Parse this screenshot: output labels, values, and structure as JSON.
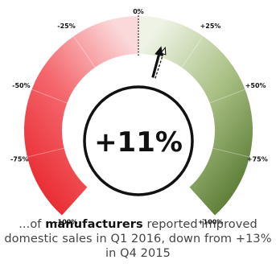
{
  "chart_data": {
    "type": "gauge",
    "value": 11,
    "previous_value": 13,
    "value_label": "+11%",
    "range": [
      -100,
      100
    ],
    "tick_labels": [
      "-100%",
      "-75%",
      "-50%",
      "-25%",
      "0%",
      "+25%",
      "+50%",
      "+75%",
      "+100%"
    ],
    "tick_values": [
      -100,
      -75,
      -50,
      -25,
      0,
      25,
      50,
      75,
      100
    ],
    "negative_colors": [
      "#e5191f",
      "#f4676d",
      "#fbd3d4"
    ],
    "positive_colors": [
      "#e9f0dc",
      "#a9c084",
      "#4a6d23"
    ]
  },
  "caption": {
    "prefix": "...of ",
    "bold": "manufacturers",
    "suffix": " reported improved domestic sales in Q1 2016, down from +13% in Q4 2015"
  }
}
